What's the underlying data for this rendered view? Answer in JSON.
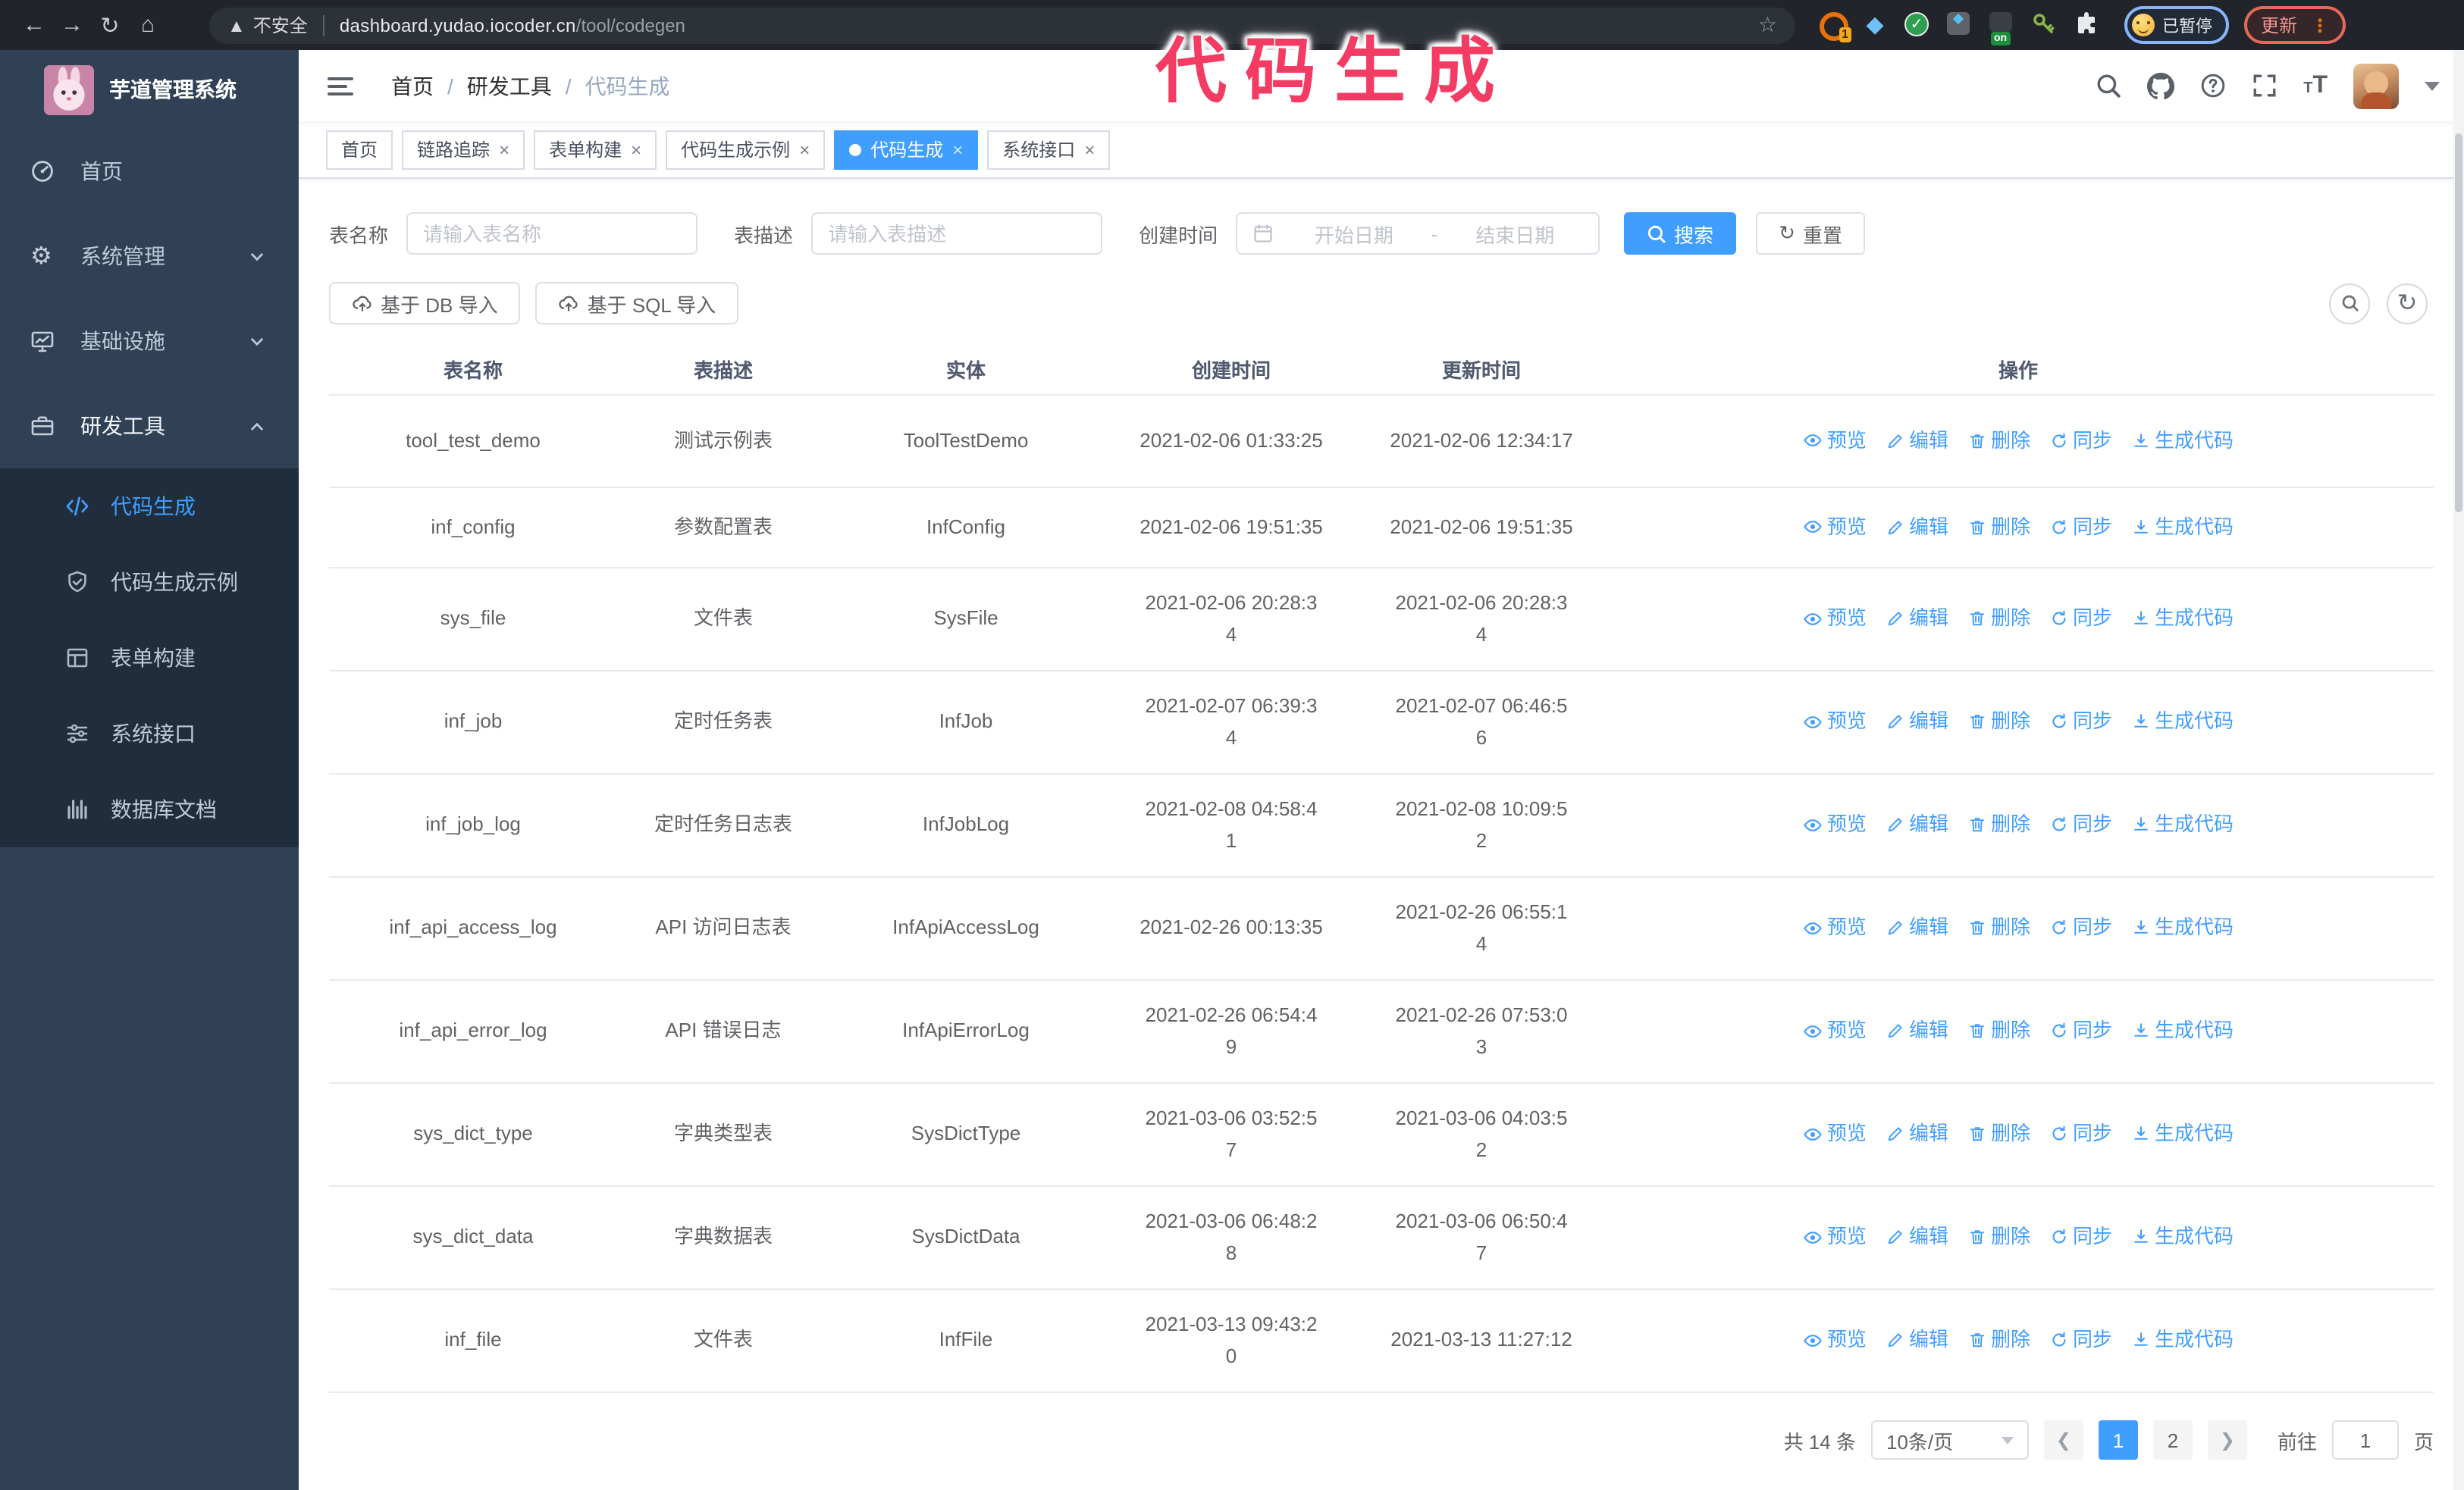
{
  "annotation": {
    "text": "代码生成",
    "color": "#f43b63"
  },
  "browser": {
    "nav_icons": [
      "back-icon",
      "forward-icon",
      "reload-icon",
      "home-icon"
    ],
    "security_label": "不安全",
    "url_host": "dashboard.yudao.iocoder.cn",
    "url_path": "/tool/codegen",
    "bookmark_icon": "star-icon",
    "extension_badge": "1",
    "extension_on_badge": "on",
    "profile_chip_label": "已暂停",
    "update_button_label": "更新"
  },
  "sidebar": {
    "app_title": "芋道管理系统",
    "menu": [
      {
        "label": "首页",
        "icon": "dashboard-icon",
        "chevron": null,
        "active": false
      },
      {
        "label": "系统管理",
        "icon": "gear-icon",
        "chevron": "down",
        "active": false
      },
      {
        "label": "基础设施",
        "icon": "monitor-icon",
        "chevron": "down",
        "active": false
      },
      {
        "label": "研发工具",
        "icon": "toolbox-icon",
        "chevron": "up",
        "active": true
      }
    ],
    "submenu": [
      {
        "label": "代码生成",
        "icon": "code-icon",
        "active": true
      },
      {
        "label": "代码生成示例",
        "icon": "example-icon",
        "active": false
      },
      {
        "label": "表单构建",
        "icon": "form-icon",
        "active": false
      },
      {
        "label": "系统接口",
        "icon": "api-icon",
        "active": false
      },
      {
        "label": "数据库文档",
        "icon": "database-icon",
        "active": false
      }
    ]
  },
  "header": {
    "breadcrumb": [
      "首页",
      "研发工具",
      "代码生成"
    ],
    "right_icons": [
      "search-icon",
      "github-icon",
      "help-icon",
      "fullscreen-icon",
      "font-size-icon",
      "avatar",
      "chevron-down-icon"
    ]
  },
  "tabs": [
    {
      "label": "首页",
      "closable": false,
      "active": false
    },
    {
      "label": "链路追踪",
      "closable": true,
      "active": false
    },
    {
      "label": "表单构建",
      "closable": true,
      "active": false
    },
    {
      "label": "代码生成示例",
      "closable": true,
      "active": false
    },
    {
      "label": "代码生成",
      "closable": true,
      "active": true
    },
    {
      "label": "系统接口",
      "closable": true,
      "active": false
    }
  ],
  "filters": {
    "name_label": "表名称",
    "name_placeholder": "请输入表名称",
    "desc_label": "表描述",
    "desc_placeholder": "请输入表描述",
    "time_label": "创建时间",
    "start_placeholder": "开始日期",
    "range_separator": "-",
    "end_placeholder": "结束日期",
    "search_label": "搜索",
    "reset_label": "重置"
  },
  "toolbar": {
    "import_db_label": "基于 DB 导入",
    "import_sql_label": "基于 SQL 导入",
    "tool_icons": [
      "search-toggle-icon",
      "refresh-icon"
    ]
  },
  "table": {
    "columns": [
      "表名称",
      "表描述",
      "实体",
      "创建时间",
      "更新时间",
      "操作"
    ],
    "actions": [
      {
        "label": "预览",
        "icon": "eye-icon"
      },
      {
        "label": "编辑",
        "icon": "edit-icon"
      },
      {
        "label": "删除",
        "icon": "delete-icon"
      },
      {
        "label": "同步",
        "icon": "sync-icon"
      },
      {
        "label": "生成代码",
        "icon": "generate-icon"
      }
    ],
    "rows": [
      {
        "name": "tool_test_demo",
        "desc": "测试示例表",
        "entity": "ToolTestDemo",
        "created": [
          "2021-02-06 01:33:25"
        ],
        "updated": [
          "2021-02-06 12:34:17"
        ]
      },
      {
        "name": "inf_config",
        "desc": "参数配置表",
        "entity": "InfConfig",
        "created": [
          "2021-02-06 19:51:35"
        ],
        "updated": [
          "2021-02-06 19:51:35"
        ]
      },
      {
        "name": "sys_file",
        "desc": "文件表",
        "entity": "SysFile",
        "created": [
          "2021-02-06 20:28:3",
          "4"
        ],
        "updated": [
          "2021-02-06 20:28:3",
          "4"
        ]
      },
      {
        "name": "inf_job",
        "desc": "定时任务表",
        "entity": "InfJob",
        "created": [
          "2021-02-07 06:39:3",
          "4"
        ],
        "updated": [
          "2021-02-07 06:46:5",
          "6"
        ]
      },
      {
        "name": "inf_job_log",
        "desc": "定时任务日志表",
        "entity": "InfJobLog",
        "created": [
          "2021-02-08 04:58:4",
          "1"
        ],
        "updated": [
          "2021-02-08 10:09:5",
          "2"
        ]
      },
      {
        "name": "inf_api_access_log",
        "desc": "API 访问日志表",
        "entity": "InfApiAccessLog",
        "created": [
          "2021-02-26 00:13:35"
        ],
        "updated": [
          "2021-02-26 06:55:1",
          "4"
        ]
      },
      {
        "name": "inf_api_error_log",
        "desc": "API 错误日志",
        "entity": "InfApiErrorLog",
        "created": [
          "2021-02-26 06:54:4",
          "9"
        ],
        "updated": [
          "2021-02-26 07:53:0",
          "3"
        ]
      },
      {
        "name": "sys_dict_type",
        "desc": "字典类型表",
        "entity": "SysDictType",
        "created": [
          "2021-03-06 03:52:5",
          "7"
        ],
        "updated": [
          "2021-03-06 04:03:5",
          "2"
        ]
      },
      {
        "name": "sys_dict_data",
        "desc": "字典数据表",
        "entity": "SysDictData",
        "created": [
          "2021-03-06 06:48:2",
          "8"
        ],
        "updated": [
          "2021-03-06 06:50:4",
          "7"
        ]
      },
      {
        "name": "inf_file",
        "desc": "文件表",
        "entity": "InfFile",
        "created": [
          "2021-03-13 09:43:2",
          "0"
        ],
        "updated": [
          "2021-03-13 11:27:12"
        ]
      }
    ]
  },
  "pagination": {
    "total_label": "共 14 条",
    "page_size_label": "10条/页",
    "pages": [
      "1",
      "2"
    ],
    "active_page": "1",
    "goto_label": "前往",
    "goto_value": "1",
    "page_suffix": "页"
  },
  "colors": {
    "primary": "#409eff",
    "sidebar_bg": "#304156",
    "submenu_bg": "#1f2d3d",
    "annotation": "#f43b63"
  }
}
